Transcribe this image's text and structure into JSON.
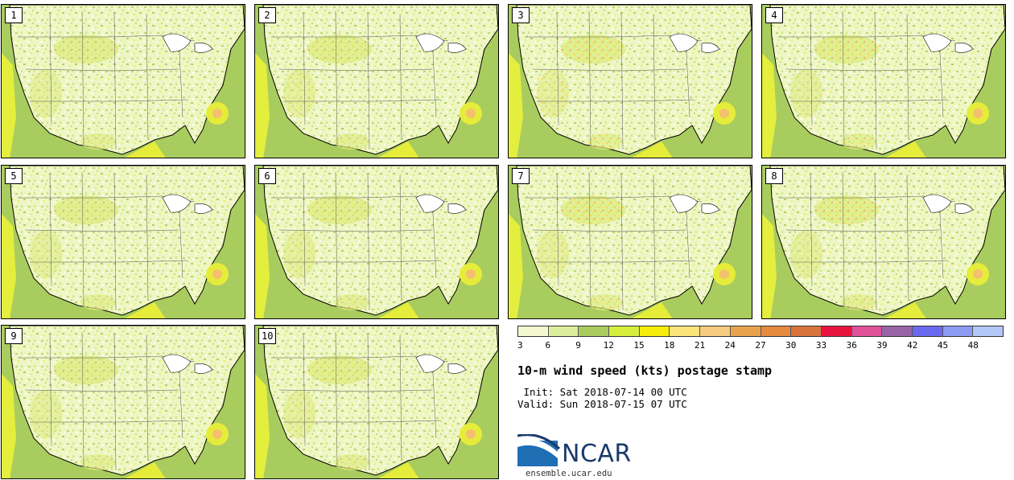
{
  "panels": [
    {
      "label": "1"
    },
    {
      "label": "2"
    },
    {
      "label": "3"
    },
    {
      "label": "4"
    },
    {
      "label": "5"
    },
    {
      "label": "6"
    },
    {
      "label": "7"
    },
    {
      "label": "8"
    },
    {
      "label": "9"
    },
    {
      "label": "10"
    }
  ],
  "colorbar": {
    "ticks": [
      "3",
      "6",
      "9",
      "12",
      "15",
      "18",
      "21",
      "24",
      "27",
      "30",
      "33",
      "36",
      "39",
      "42",
      "45",
      "48"
    ],
    "colors": [
      "#f4f9d2",
      "#dcee9c",
      "#a9cc5e",
      "#d7ee3c",
      "#f6ee0a",
      "#fbe47a",
      "#f6cd7e",
      "#e9a24c",
      "#e58a3e",
      "#d9733c",
      "#e8133e",
      "#e0529a",
      "#9a64a8",
      "#6a6af0",
      "#8c9cf4",
      "#b4c8f8"
    ]
  },
  "title": "10-m wind speed (kts) postage stamp",
  "init": " Init: Sat 2018-07-14 00 UTC",
  "valid": "Valid: Sun 2018-07-15 07 UTC",
  "logo": {
    "word": "NCAR",
    "site": "ensemble.ucar.edu"
  },
  "icons": {
    "logo": "ncar-logo-icon"
  }
}
